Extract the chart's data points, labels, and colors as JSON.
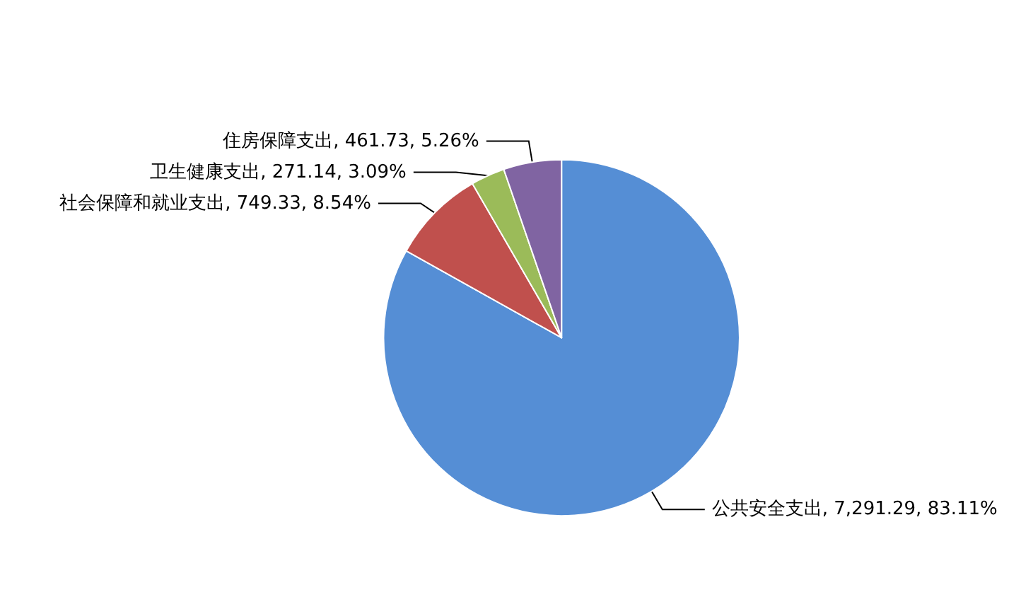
{
  "chart_data": {
    "type": "pie",
    "categories": [
      "公共安全支出",
      "社会保障和就业支出",
      "卫生健康支出",
      "住房保障支出"
    ],
    "values": [
      7291.29,
      749.33,
      271.14,
      461.73
    ],
    "value_labels": [
      "7,291.29, 83.11%",
      "749.33, 8.54%",
      "271.14, 3.09%",
      "461.73, 5.26%"
    ],
    "colors": [
      "#558ed5",
      "#c0504d",
      "#9bbb59",
      "#8064a2"
    ],
    "legend": false
  }
}
